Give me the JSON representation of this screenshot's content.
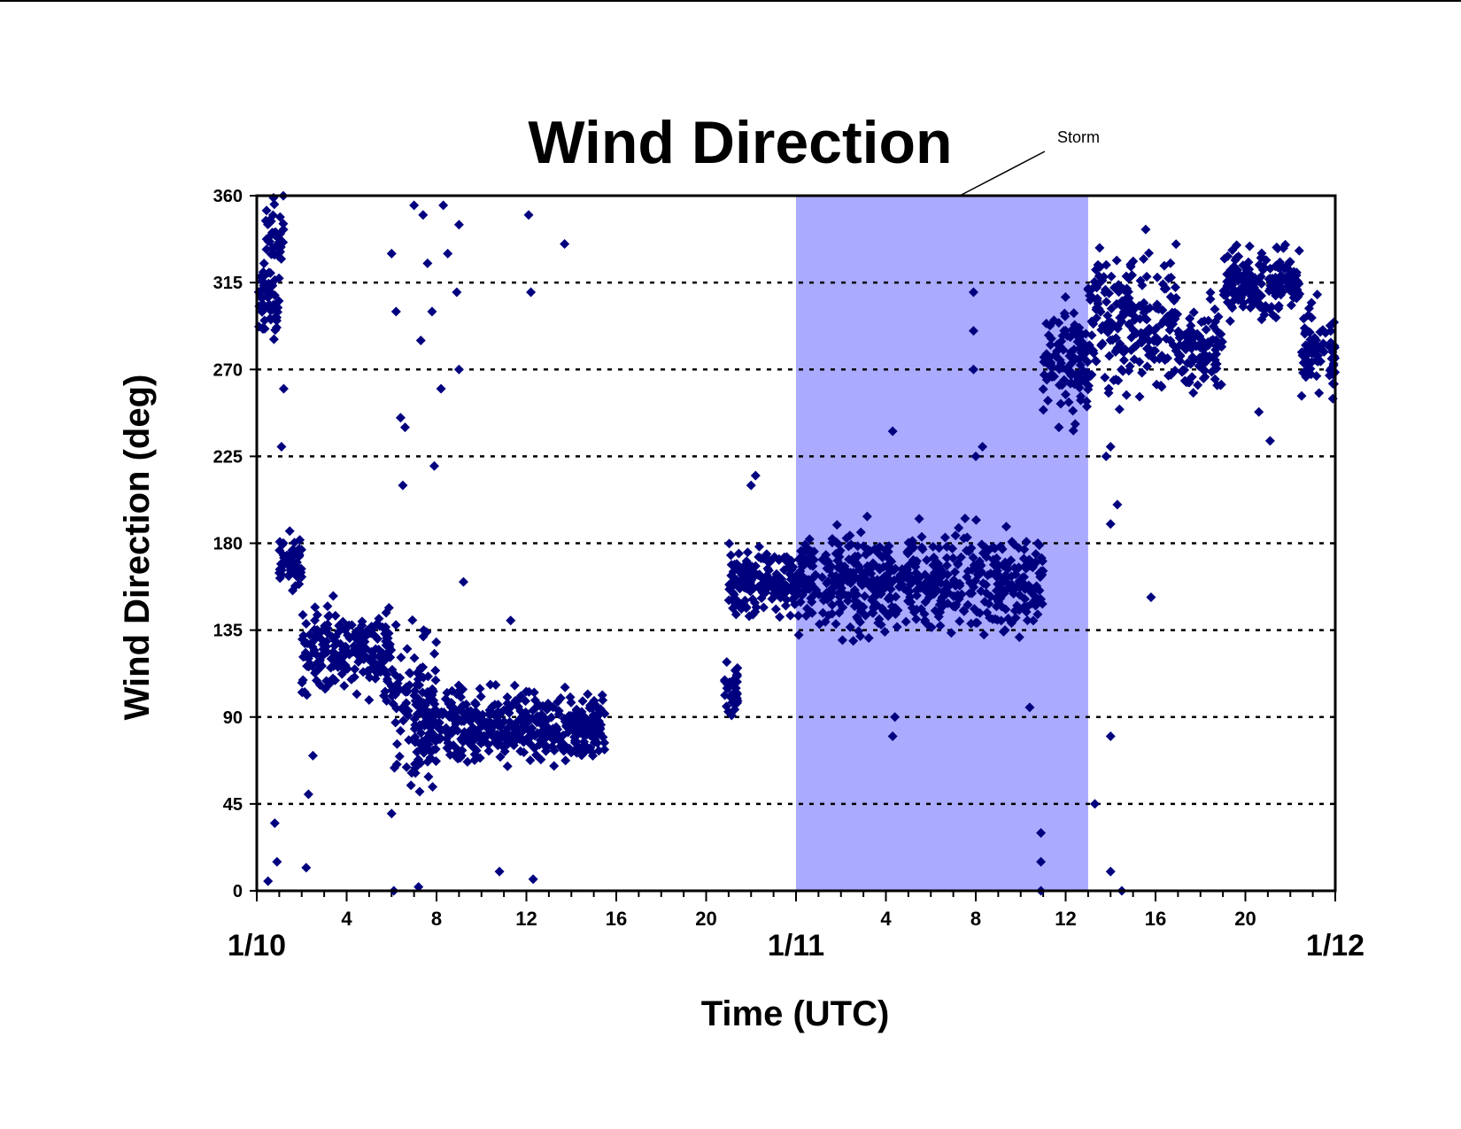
{
  "chart_data": {
    "type": "scatter",
    "title": "Wind Direction",
    "xlabel": "Time (UTC)",
    "ylabel": "Wind Direction (deg)",
    "ylim": [
      0,
      360
    ],
    "xlim": [
      "1/10 00:00",
      "1/12 00:00"
    ],
    "yticks": [
      "0",
      "45",
      "90",
      "135",
      "180",
      "225",
      "270",
      "315",
      "360"
    ],
    "xticks_hours": [
      {
        "hour": 4,
        "label": "4"
      },
      {
        "hour": 8,
        "label": "8"
      },
      {
        "hour": 12,
        "label": "12"
      },
      {
        "hour": 16,
        "label": "16"
      },
      {
        "hour": 20,
        "label": "20"
      },
      {
        "hour": 28,
        "label": "4"
      },
      {
        "hour": 32,
        "label": "8"
      },
      {
        "hour": 36,
        "label": "12"
      },
      {
        "hour": 40,
        "label": "16"
      },
      {
        "hour": 44,
        "label": "20"
      }
    ],
    "day_labels": [
      {
        "hour": 0,
        "label": "1/10"
      },
      {
        "hour": 24,
        "label": "1/11"
      },
      {
        "hour": 48,
        "label": "1/12"
      }
    ],
    "grid": "horizontal dotted",
    "marker": "diamond",
    "marker_color": "#00007f",
    "highlight": {
      "label": "Storm",
      "start": "1/11 00:00",
      "end": "1/11 13:00",
      "color": "#aaaaff"
    },
    "series_clusters": [
      {
        "t": [
          0.0,
          1.0
        ],
        "center": 305,
        "spread": 15
      },
      {
        "t": [
          0.4,
          1.2
        ],
        "center": 340,
        "spread": 15
      },
      {
        "t": [
          1.0,
          2.0
        ],
        "center": 170,
        "spread": 12
      },
      {
        "t": [
          2.0,
          6.0
        ],
        "center": 125,
        "spread": 18
      },
      {
        "t": [
          6.0,
          8.0
        ],
        "center": 95,
        "spread": 35
      },
      {
        "t": [
          7.0,
          15.5
        ],
        "center": 85,
        "spread": 15
      },
      {
        "t": [
          20.8,
          21.4
        ],
        "center": 105,
        "spread": 12
      },
      {
        "t": [
          21.0,
          24.0
        ],
        "center": 160,
        "spread": 15
      },
      {
        "t": [
          24.0,
          35.0
        ],
        "center": 160,
        "spread": 20
      },
      {
        "t": [
          35.0,
          37.0
        ],
        "center": 275,
        "spread": 25
      },
      {
        "t": [
          37.0,
          41.0
        ],
        "center": 295,
        "spread": 30
      },
      {
        "t": [
          41.0,
          43.0
        ],
        "center": 280,
        "spread": 18
      },
      {
        "t": [
          43.0,
          46.5
        ],
        "center": 315,
        "spread": 15
      },
      {
        "t": [
          46.5,
          48.0
        ],
        "center": 280,
        "spread": 20
      }
    ],
    "sparse_points": [
      {
        "t": 0.5,
        "v": 5
      },
      {
        "t": 0.8,
        "v": 35
      },
      {
        "t": 0.9,
        "v": 15
      },
      {
        "t": 1.1,
        "v": 230
      },
      {
        "t": 1.2,
        "v": 260
      },
      {
        "t": 2.2,
        "v": 12
      },
      {
        "t": 2.3,
        "v": 50
      },
      {
        "t": 2.5,
        "v": 70
      },
      {
        "t": 6.0,
        "v": 330
      },
      {
        "t": 6.2,
        "v": 300
      },
      {
        "t": 6.4,
        "v": 245
      },
      {
        "t": 6.5,
        "v": 210
      },
      {
        "t": 6.6,
        "v": 240
      },
      {
        "t": 7.0,
        "v": 355
      },
      {
        "t": 7.4,
        "v": 350
      },
      {
        "t": 7.6,
        "v": 325
      },
      {
        "t": 7.8,
        "v": 300
      },
      {
        "t": 8.3,
        "v": 355
      },
      {
        "t": 8.5,
        "v": 330
      },
      {
        "t": 8.9,
        "v": 310
      },
      {
        "t": 9.0,
        "v": 345
      },
      {
        "t": 9.0,
        "v": 270
      },
      {
        "t": 7.3,
        "v": 285
      },
      {
        "t": 7.9,
        "v": 220
      },
      {
        "t": 8.2,
        "v": 260
      },
      {
        "t": 9.2,
        "v": 160
      },
      {
        "t": 10.8,
        "v": 10
      },
      {
        "t": 11.3,
        "v": 140
      },
      {
        "t": 12.1,
        "v": 350
      },
      {
        "t": 12.2,
        "v": 310
      },
      {
        "t": 12.3,
        "v": 6
      },
      {
        "t": 13.7,
        "v": 335
      },
      {
        "t": 6.0,
        "v": 40
      },
      {
        "t": 6.1,
        "v": 0
      },
      {
        "t": 7.2,
        "v": 2
      },
      {
        "t": 22.2,
        "v": 215
      },
      {
        "t": 22.0,
        "v": 210
      },
      {
        "t": 28.3,
        "v": 238
      },
      {
        "t": 28.3,
        "v": 80
      },
      {
        "t": 28.4,
        "v": 90
      },
      {
        "t": 31.9,
        "v": 310
      },
      {
        "t": 31.9,
        "v": 290
      },
      {
        "t": 31.9,
        "v": 270
      },
      {
        "t": 32.3,
        "v": 230
      },
      {
        "t": 32.0,
        "v": 225
      },
      {
        "t": 34.4,
        "v": 95
      },
      {
        "t": 34.9,
        "v": 30
      },
      {
        "t": 34.9,
        "v": 15
      },
      {
        "t": 34.9,
        "v": 0
      },
      {
        "t": 35.7,
        "v": 240
      },
      {
        "t": 37.3,
        "v": 45
      },
      {
        "t": 38.0,
        "v": 80
      },
      {
        "t": 38.0,
        "v": 10
      },
      {
        "t": 38.5,
        "v": 0
      },
      {
        "t": 38.3,
        "v": 200
      },
      {
        "t": 38.0,
        "v": 190
      },
      {
        "t": 37.8,
        "v": 225
      },
      {
        "t": 38.0,
        "v": 230
      },
      {
        "t": 39.8,
        "v": 152
      },
      {
        "t": 44.6,
        "v": 248
      },
      {
        "t": 45.1,
        "v": 233
      }
    ]
  }
}
